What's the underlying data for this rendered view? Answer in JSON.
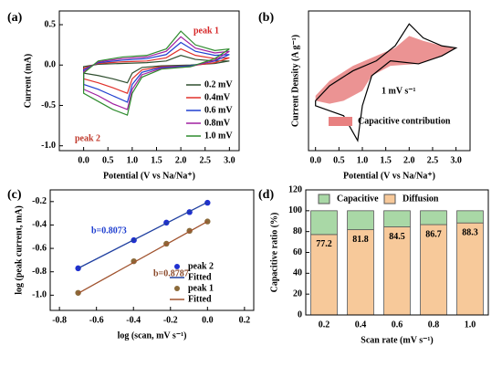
{
  "chart_data": [
    {
      "panel_label": "(a)",
      "type": "line",
      "closed": true,
      "xlabel": "Potential (V vs Na/Na⁺)",
      "ylabel": "Current (mA)",
      "xlim": [
        -0.5,
        3.2
      ],
      "ylim": [
        -1.06,
        0.67
      ],
      "xticks": [
        {
          "value": 0,
          "label": "0.0"
        },
        0.5,
        {
          "value": 1,
          "label": "1.0"
        },
        1.5,
        {
          "value": 2,
          "label": "2.0"
        },
        2.5,
        {
          "value": 3,
          "label": "3.0"
        }
      ],
      "yticks": [
        {
          "value": -1,
          "label": "-1.0"
        },
        -0.5,
        {
          "value": 0,
          "label": "0.0"
        },
        0.5
      ],
      "legend": "lower right",
      "annotations": [
        {
          "text": "peak 1",
          "color": "#d62728"
        },
        {
          "text": "peak 2",
          "color": "#c0392b"
        }
      ],
      "x": [
        0,
        0.3,
        0.8,
        1.3,
        1.7,
        2.0,
        2.3,
        2.7,
        3.0,
        2.7,
        2.2,
        1.6,
        1.2,
        1.0,
        0.9,
        0.6,
        0.3,
        0
      ],
      "series": [
        {
          "name": "0.2 mV",
          "color": "#2f4f2f",
          "values": [
            -0.02,
            0.01,
            0.02,
            0.03,
            0.05,
            0.12,
            0.07,
            0.05,
            0.05,
            0.02,
            0,
            -0.01,
            -0.03,
            -0.1,
            -0.22,
            -0.17,
            -0.13,
            -0.1
          ]
        },
        {
          "name": "0.4mV",
          "color": "#e0302a",
          "values": [
            -0.04,
            0.02,
            0.04,
            0.05,
            0.09,
            0.2,
            0.12,
            0.08,
            0.09,
            0.03,
            -0.01,
            -0.02,
            -0.06,
            -0.17,
            -0.35,
            -0.28,
            -0.22,
            -0.17
          ]
        },
        {
          "name": "0.6 mV",
          "color": "#1f3fd0",
          "values": [
            -0.06,
            0.03,
            0.06,
            0.08,
            0.13,
            0.28,
            0.17,
            0.12,
            0.13,
            0.05,
            -0.01,
            -0.03,
            -0.09,
            -0.24,
            -0.46,
            -0.38,
            -0.3,
            -0.24
          ]
        },
        {
          "name": "0.8mV",
          "color": "#a020a0",
          "values": [
            -0.08,
            0.04,
            0.08,
            0.1,
            0.17,
            0.35,
            0.21,
            0.15,
            0.17,
            0.06,
            -0.02,
            -0.04,
            -0.12,
            -0.3,
            -0.55,
            -0.48,
            -0.38,
            -0.3
          ]
        },
        {
          "name": "1.0 mV",
          "color": "#2e8b2e",
          "values": [
            -0.1,
            0.05,
            0.1,
            0.12,
            0.2,
            0.42,
            0.25,
            0.18,
            0.2,
            0.08,
            -0.02,
            -0.05,
            -0.15,
            -0.35,
            -0.62,
            -0.55,
            -0.45,
            -0.35
          ]
        }
      ]
    },
    {
      "panel_label": "(b)",
      "type": "line",
      "closed": true,
      "xlabel": "Potential (V vs Na/Na⁺)",
      "ylabel": "Current Density (A g⁻¹)",
      "xlim": [
        -0.15,
        3.3
      ],
      "ylim": [
        -0.85,
        0.55
      ],
      "xticks": [
        {
          "value": 0,
          "label": "0.0"
        },
        0.5,
        {
          "value": 1,
          "label": "1.0"
        },
        1.5,
        {
          "value": 2,
          "label": "2.0"
        },
        2.5,
        {
          "value": 3,
          "label": "3.0"
        }
      ],
      "legend": "lower right",
      "annotations": [
        {
          "text": "1 mV s⁻¹",
          "color": "#000000"
        }
      ],
      "series": [
        {
          "name": "Capacitive contribution",
          "color": "#e88080",
          "fill": true,
          "x": [
            0,
            0.3,
            0.8,
            1.3,
            1.7,
            2.0,
            2.3,
            2.7,
            3.0,
            2.7,
            2.2,
            1.6,
            1.2,
            1.0,
            0.6,
            0.3,
            0
          ],
          "values": [
            -0.3,
            -0.15,
            0.0,
            0.1,
            0.18,
            0.3,
            0.25,
            0.2,
            0.18,
            0.1,
            0.02,
            0.0,
            -0.1,
            -0.25,
            -0.35,
            -0.38,
            -0.35
          ]
        },
        {
          "color": "#000000",
          "fill": false,
          "x": [
            0,
            0.3,
            0.8,
            1.3,
            1.7,
            2.0,
            2.3,
            2.7,
            3.0,
            2.7,
            2.2,
            1.6,
            1.2,
            1.0,
            0.9,
            0.6,
            0.3,
            0
          ],
          "values": [
            -0.35,
            -0.2,
            -0.05,
            0.05,
            0.2,
            0.42,
            0.28,
            0.2,
            0.18,
            0.1,
            0.02,
            0.05,
            -0.1,
            -0.4,
            -0.75,
            -0.5,
            -0.45,
            -0.4
          ]
        }
      ]
    },
    {
      "panel_label": "(c)",
      "type": "scatter",
      "xlabel": "log (scan, mV s⁻¹)",
      "ylabel": "log (peak current, mA)",
      "xlim": [
        -0.85,
        0.25
      ],
      "ylim": [
        -1.13,
        -0.1
      ],
      "xticks": [
        -0.8,
        -0.6,
        -0.4,
        -0.2,
        {
          "value": 0,
          "label": "0.0"
        },
        0.2
      ],
      "yticks": [
        {
          "value": -1,
          "label": "-1.0"
        },
        -0.8,
        -0.6,
        -0.4,
        -0.2
      ],
      "legend": "lower right",
      "annotations": [
        {
          "text": "b=0.8073",
          "color": "#1f3fd0"
        },
        {
          "text": "b=0.8787",
          "color": "#8b4a2b"
        }
      ],
      "series": [
        {
          "name": "peak 2",
          "color": "#2030d0",
          "style": "marker",
          "x": [
            -0.699,
            -0.398,
            -0.222,
            -0.097,
            0
          ],
          "values": [
            -0.77,
            -0.53,
            -0.38,
            -0.29,
            -0.21
          ]
        },
        {
          "name": "Fitted",
          "color": "#1f3fa0",
          "style": "line",
          "x": [
            -0.699,
            0
          ],
          "values": [
            -0.77,
            -0.206
          ]
        },
        {
          "name": "peak 1",
          "color": "#8b6a3a",
          "style": "marker",
          "x": [
            -0.699,
            -0.398,
            -0.222,
            -0.097,
            0
          ],
          "values": [
            -0.98,
            -0.71,
            -0.56,
            -0.45,
            -0.37
          ]
        },
        {
          "name": "Fitted",
          "color": "#a0522d",
          "style": "line",
          "x": [
            -0.699,
            0
          ],
          "values": [
            -0.984,
            -0.37
          ]
        }
      ]
    },
    {
      "panel_label": "(d)",
      "type": "bar",
      "stacked": true,
      "xlabel": "Scan rate (mV s⁻¹)",
      "ylabel": "Capacitive ratio (%)",
      "ylim": [
        0,
        120
      ],
      "yticks": [
        0,
        20,
        40,
        60,
        80,
        100,
        120
      ],
      "legend": "upper left",
      "categories": [
        "0.2",
        "0.4",
        "0.6",
        "0.8",
        "1.0"
      ],
      "series": [
        {
          "name": "Capacitive",
          "color": "#a9d8a6",
          "values": [
            22.8,
            18.2,
            15.5,
            13.3,
            11.7
          ]
        },
        {
          "name": "Diffusion",
          "color": "#f7c99a",
          "values": [
            77.2,
            81.8,
            84.5,
            86.7,
            88.3
          ],
          "labels": true
        }
      ]
    }
  ]
}
